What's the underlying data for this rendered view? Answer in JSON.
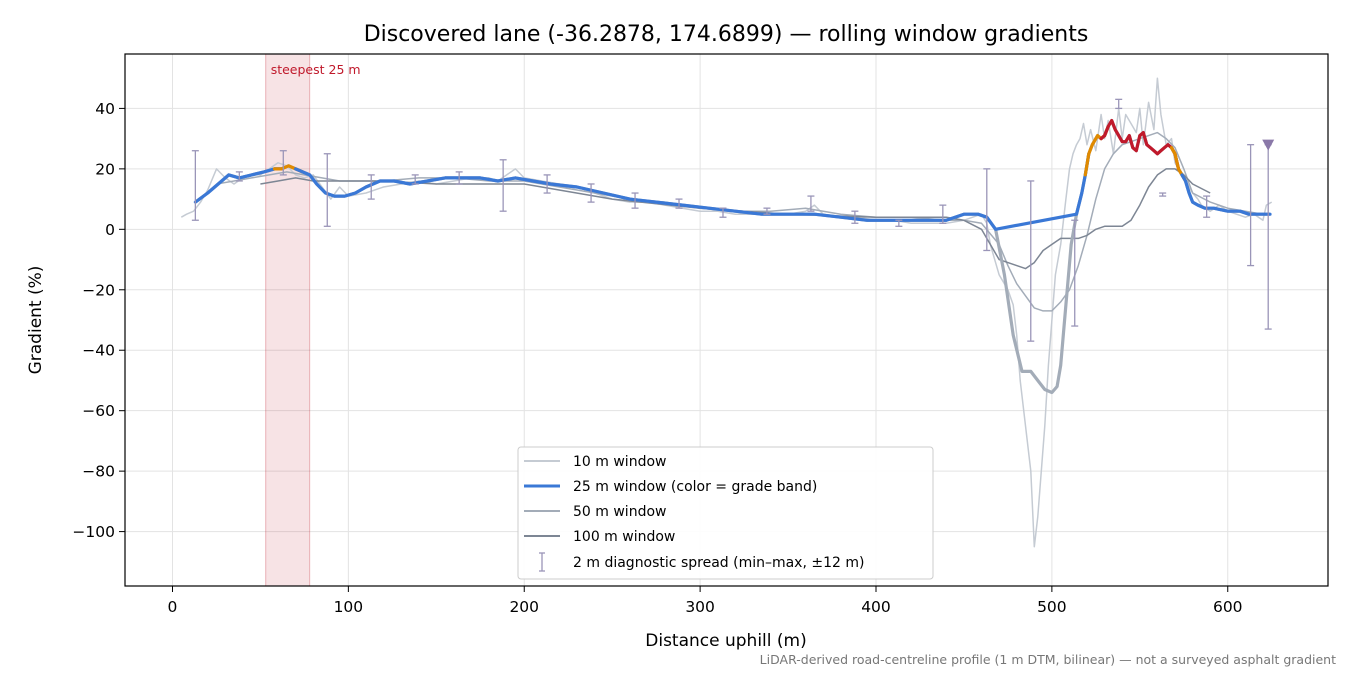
{
  "chart_data": {
    "type": "line",
    "title": "Discovered lane (-36.2878, 174.6899) — rolling window gradients",
    "xlabel": "Distance uphill (m)",
    "ylabel": "Gradient (%)",
    "xlim": [
      -27,
      657
    ],
    "ylim": [
      -118,
      58
    ],
    "xticks": [
      0,
      100,
      200,
      300,
      400,
      500,
      600
    ],
    "yticks": [
      -100,
      -80,
      -60,
      -40,
      -20,
      0,
      20,
      40
    ],
    "xtick_labels": [
      "0",
      "100",
      "200",
      "300",
      "400",
      "500",
      "600"
    ],
    "ytick_labels": [
      "−100",
      "−80",
      "−60",
      "−40",
      "−20",
      "0",
      "20",
      "40"
    ],
    "grid": true,
    "legend_position": "lower center",
    "highlight": {
      "label": "steepest 25 m",
      "x_start": 53,
      "x_end": 78,
      "color": "#c0192b"
    },
    "footnote": "LiDAR-derived road-centreline profile (1 m DTM, bilinear) — not a surveyed asphalt gradient",
    "colors": {
      "blue": "#3a78d6",
      "orange": "#e08a00",
      "red": "#c0192b",
      "w10": "#c5cbd3",
      "w50": "#a3acb8",
      "w100": "#7d8694",
      "diag": "#9a95b8"
    },
    "grade_bands": [
      {
        "x_from": 0,
        "x_to": 60,
        "color": "#3a78d6"
      },
      {
        "x_from": 60,
        "x_to": 72,
        "color": "#e08a00"
      },
      {
        "x_from": 72,
        "x_to": 520,
        "color": "#3a78d6"
      },
      {
        "x_from": 520,
        "x_to": 530,
        "color": "#e08a00"
      },
      {
        "x_from": 530,
        "x_to": 570,
        "color": "#c0192b"
      },
      {
        "x_from": 570,
        "x_to": 575,
        "color": "#e08a00"
      },
      {
        "x_from": 575,
        "x_to": 700,
        "color": "#3a78d6"
      }
    ],
    "series": [
      {
        "name": "10 m window",
        "x": [
          5,
          8,
          12,
          16,
          20,
          25,
          30,
          35,
          40,
          45,
          50,
          55,
          60,
          65,
          70,
          75,
          80,
          85,
          90,
          95,
          100,
          110,
          120,
          130,
          140,
          150,
          160,
          170,
          180,
          185,
          190,
          195,
          200,
          210,
          220,
          230,
          240,
          250,
          260,
          270,
          280,
          290,
          300,
          310,
          320,
          330,
          340,
          350,
          360,
          365,
          370,
          380,
          390,
          400,
          410,
          420,
          430,
          440,
          450,
          455,
          460,
          463,
          465,
          470,
          475,
          478,
          480,
          482,
          485,
          488,
          490,
          492,
          494,
          496,
          498,
          500,
          502,
          505,
          508,
          510,
          512,
          514,
          516,
          518,
          520,
          522,
          525,
          528,
          530,
          532,
          535,
          538,
          540,
          542,
          545,
          548,
          550,
          552,
          555,
          558,
          560,
          562,
          565,
          568,
          570,
          572,
          575,
          578,
          580,
          583,
          585,
          590,
          595,
          600,
          605,
          610,
          615,
          620,
          622,
          625
        ],
        "y": [
          4,
          5,
          6,
          9,
          13,
          20,
          17,
          15,
          17,
          18,
          18,
          20,
          22,
          21,
          18,
          17,
          18,
          14,
          10,
          14,
          11,
          12,
          14,
          15,
          16,
          15,
          16,
          17,
          17,
          16,
          18,
          20,
          17,
          16,
          15,
          14,
          12,
          10,
          9,
          9,
          8,
          7,
          6,
          6,
          5,
          5,
          5,
          5,
          6,
          8,
          5,
          4,
          4,
          3,
          3,
          2,
          2,
          2,
          3,
          4,
          5,
          2,
          -5,
          -15,
          -20,
          -25,
          -35,
          -50,
          -65,
          -80,
          -105,
          -95,
          -80,
          -65,
          -45,
          -30,
          -15,
          -5,
          10,
          20,
          25,
          28,
          30,
          35,
          28,
          33,
          26,
          38,
          30,
          36,
          25,
          40,
          30,
          38,
          35,
          32,
          40,
          28,
          42,
          33,
          50,
          38,
          28,
          30,
          22,
          20,
          18,
          14,
          12,
          10,
          8,
          6,
          8,
          6,
          5,
          4,
          5,
          3,
          8,
          9
        ]
      },
      {
        "name": "25 m window",
        "x": [
          13,
          20,
          26,
          32,
          38,
          45,
          52,
          58,
          62,
          66,
          70,
          74,
          78,
          82,
          87,
          92,
          98,
          104,
          110,
          118,
          126,
          135,
          145,
          155,
          165,
          175,
          185,
          195,
          205,
          215,
          230,
          245,
          260,
          275,
          290,
          305,
          320,
          335,
          350,
          365,
          380,
          395,
          410,
          425,
          440,
          450,
          458,
          463,
          468,
          473,
          478,
          483,
          488,
          492,
          496,
          500,
          503,
          505,
          508,
          511,
          514,
          517,
          519,
          521,
          523,
          526,
          528,
          530,
          532,
          534,
          536,
          538,
          540,
          542,
          544,
          546,
          548,
          550,
          552,
          554,
          556,
          558,
          560,
          562,
          564,
          566,
          568,
          570,
          572,
          574,
          576,
          578,
          580,
          583,
          587,
          592,
          600,
          607,
          612,
          618,
          624
        ],
        "y": [
          9,
          12,
          15,
          18,
          17,
          18,
          19,
          20,
          20,
          21,
          20,
          19,
          18,
          15,
          12,
          11,
          11,
          12,
          14,
          16,
          16,
          15,
          16,
          17,
          17,
          17,
          16,
          17,
          16,
          15,
          14,
          12,
          10,
          9,
          8,
          7,
          6,
          5,
          5,
          5,
          4,
          3,
          3,
          3,
          3,
          5,
          5,
          4,
          0,
          -15,
          -35,
          -47,
          -47,
          -50,
          -53,
          -54,
          -52,
          -45,
          -25,
          -5,
          5,
          12,
          18,
          25,
          28,
          31,
          30,
          31,
          34,
          36,
          33,
          31,
          29,
          29,
          31,
          27,
          26,
          31,
          32,
          28,
          27,
          26,
          25,
          26,
          27,
          28,
          27,
          25,
          20,
          18,
          16,
          12,
          9,
          8,
          7,
          7,
          6,
          6,
          5,
          5,
          5
        ]
      },
      {
        "name": "50 m window",
        "x": [
          25,
          35,
          45,
          55,
          65,
          75,
          85,
          95,
          105,
          120,
          140,
          160,
          180,
          200,
          220,
          240,
          260,
          280,
          300,
          320,
          340,
          360,
          380,
          400,
          420,
          440,
          450,
          460,
          470,
          475,
          480,
          485,
          490,
          495,
          500,
          505,
          510,
          515,
          520,
          525,
          530,
          535,
          540,
          545,
          550,
          555,
          560,
          565,
          570,
          575,
          580,
          590,
          600,
          610,
          620
        ],
        "y": [
          15,
          16,
          17,
          18,
          19,
          18,
          17,
          16,
          16,
          16,
          17,
          17,
          16,
          16,
          14,
          12,
          10,
          9,
          7,
          6,
          6,
          7,
          5,
          4,
          4,
          3,
          3,
          2,
          -5,
          -12,
          -18,
          -22,
          -26,
          -27,
          -27,
          -24,
          -20,
          -12,
          -2,
          10,
          20,
          25,
          28,
          29,
          30,
          31,
          32,
          30,
          27,
          20,
          12,
          9,
          7,
          6,
          5
        ]
      },
      {
        "name": "100 m window",
        "x": [
          50,
          60,
          70,
          80,
          90,
          100,
          120,
          150,
          200,
          250,
          300,
          350,
          400,
          420,
          440,
          450,
          460,
          465,
          470,
          475,
          480,
          485,
          490,
          495,
          500,
          505,
          510,
          515,
          520,
          525,
          530,
          535,
          540,
          545,
          550,
          555,
          560,
          565,
          570,
          575,
          580,
          590
        ],
        "y": [
          15,
          16,
          17,
          16,
          16,
          16,
          16,
          15,
          15,
          10,
          7,
          5,
          4,
          4,
          4,
          3,
          0,
          -5,
          -10,
          -11,
          -12,
          -13,
          -11,
          -7,
          -5,
          -3,
          -3,
          -3,
          -2,
          0,
          1,
          1,
          1,
          3,
          8,
          14,
          18,
          20,
          20,
          18,
          15,
          12
        ]
      }
    ],
    "diagnostic_spread": {
      "name": "2 m diagnostic spread (min–max, ±12 m)",
      "points": [
        {
          "x": 13,
          "min": 3,
          "max": 26
        },
        {
          "x": 38,
          "min": 16,
          "max": 19
        },
        {
          "x": 63,
          "min": 18,
          "max": 26
        },
        {
          "x": 88,
          "min": 1,
          "max": 25
        },
        {
          "x": 113,
          "min": 10,
          "max": 18
        },
        {
          "x": 138,
          "min": 15,
          "max": 18
        },
        {
          "x": 163,
          "min": 15,
          "max": 19
        },
        {
          "x": 188,
          "min": 6,
          "max": 23
        },
        {
          "x": 213,
          "min": 12,
          "max": 18
        },
        {
          "x": 238,
          "min": 9,
          "max": 15
        },
        {
          "x": 263,
          "min": 7,
          "max": 12
        },
        {
          "x": 288,
          "min": 7,
          "max": 10
        },
        {
          "x": 313,
          "min": 4,
          "max": 7
        },
        {
          "x": 338,
          "min": 5,
          "max": 7
        },
        {
          "x": 363,
          "min": 6,
          "max": 11
        },
        {
          "x": 388,
          "min": 2,
          "max": 6
        },
        {
          "x": 413,
          "min": 1,
          "max": 3
        },
        {
          "x": 438,
          "min": 2,
          "max": 8
        },
        {
          "x": 463,
          "min": -7,
          "max": 20
        },
        {
          "x": 488,
          "min": -37,
          "max": 16
        },
        {
          "x": 513,
          "min": -32,
          "max": 3
        },
        {
          "x": 538,
          "min": 40,
          "max": 43
        },
        {
          "x": 563,
          "min": 11,
          "max": 12
        },
        {
          "x": 588,
          "min": 4,
          "max": 11
        },
        {
          "x": 613,
          "min": -12,
          "max": 28
        },
        {
          "x": 623,
          "min": -33,
          "max": 28
        }
      ],
      "clip_marker": {
        "x": 623,
        "y": 28
      }
    },
    "legend": [
      "10 m window",
      "25 m window (color = grade band)",
      "50 m window",
      "100 m window",
      "2 m diagnostic spread (min–max, ±12 m)"
    ]
  }
}
